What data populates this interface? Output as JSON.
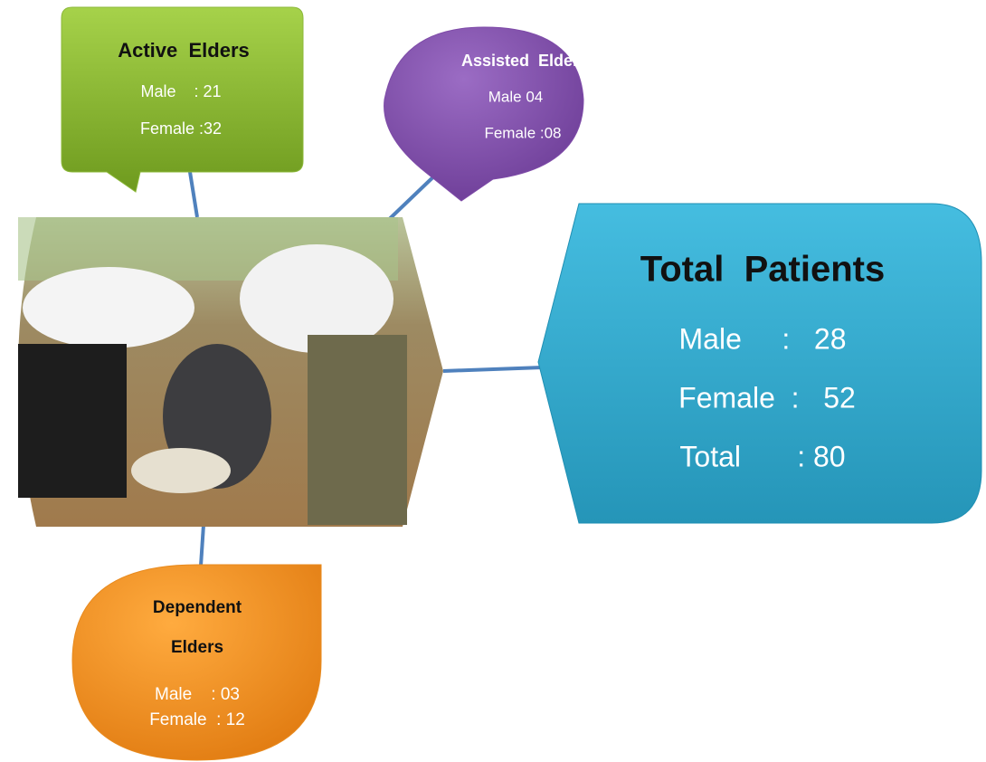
{
  "active": {
    "title": "Active  Elders",
    "lines": [
      "Male    : 21",
      "Female :32"
    ]
  },
  "assisted": {
    "title": "Assisted  Elders",
    "lines": [
      "Male 04",
      "Female :08"
    ]
  },
  "total": {
    "title": "Total  Patients",
    "lines": [
      "Male     :   28",
      "Female  :   52",
      "Total       : 80"
    ]
  },
  "dependent": {
    "title": [
      "Dependent",
      "Elders"
    ],
    "lines": [
      "Male    : 03",
      "Female  : 12"
    ]
  }
}
